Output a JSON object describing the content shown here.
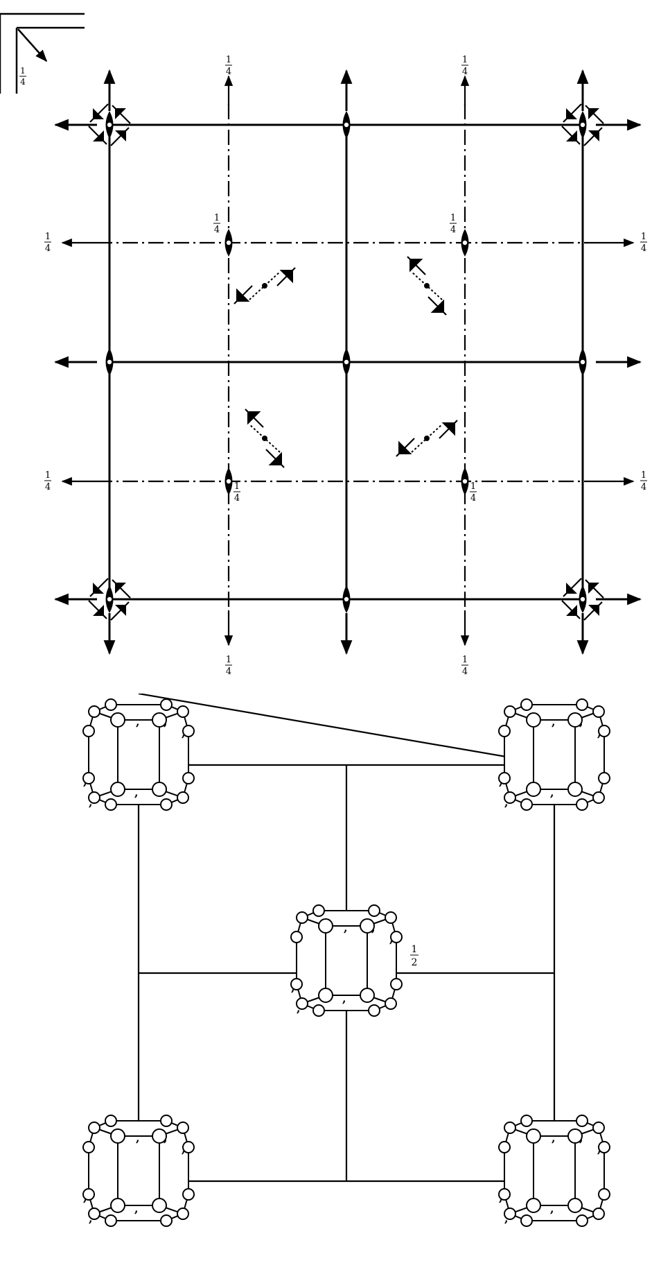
{
  "symmetry_diagram": {
    "origin_label": "1/4",
    "top_labels": [
      "1/4",
      "1/4"
    ],
    "bottom_labels": [
      "1/4",
      "1/4"
    ],
    "left_labels": [
      "1/4",
      "1/4"
    ],
    "right_labels": [
      "1/4",
      "1/4"
    ],
    "axis_height_labels": [
      "1/4",
      "1/4",
      "1/4",
      "1/4"
    ]
  },
  "packing_diagram": {
    "center_height_label": "1/2"
  },
  "colors": {
    "ink": "#000000",
    "paper": "#ffffff"
  }
}
